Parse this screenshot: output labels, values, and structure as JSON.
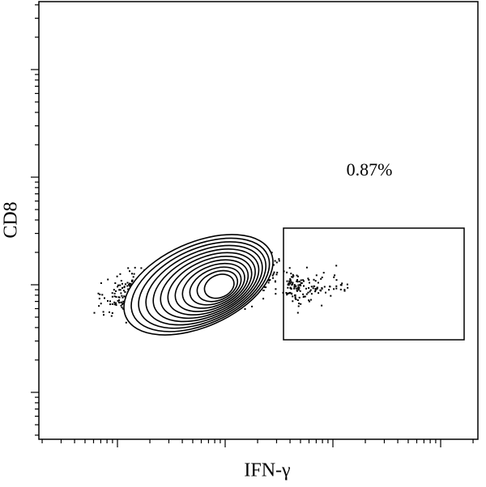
{
  "chart_data": {
    "type": "contour",
    "x_label": "IFN-γ",
    "y_label": "CD8",
    "log_scale": true,
    "gate_percent": 0.87,
    "gate_percent_label": "0.87%",
    "color": "#000000"
  }
}
